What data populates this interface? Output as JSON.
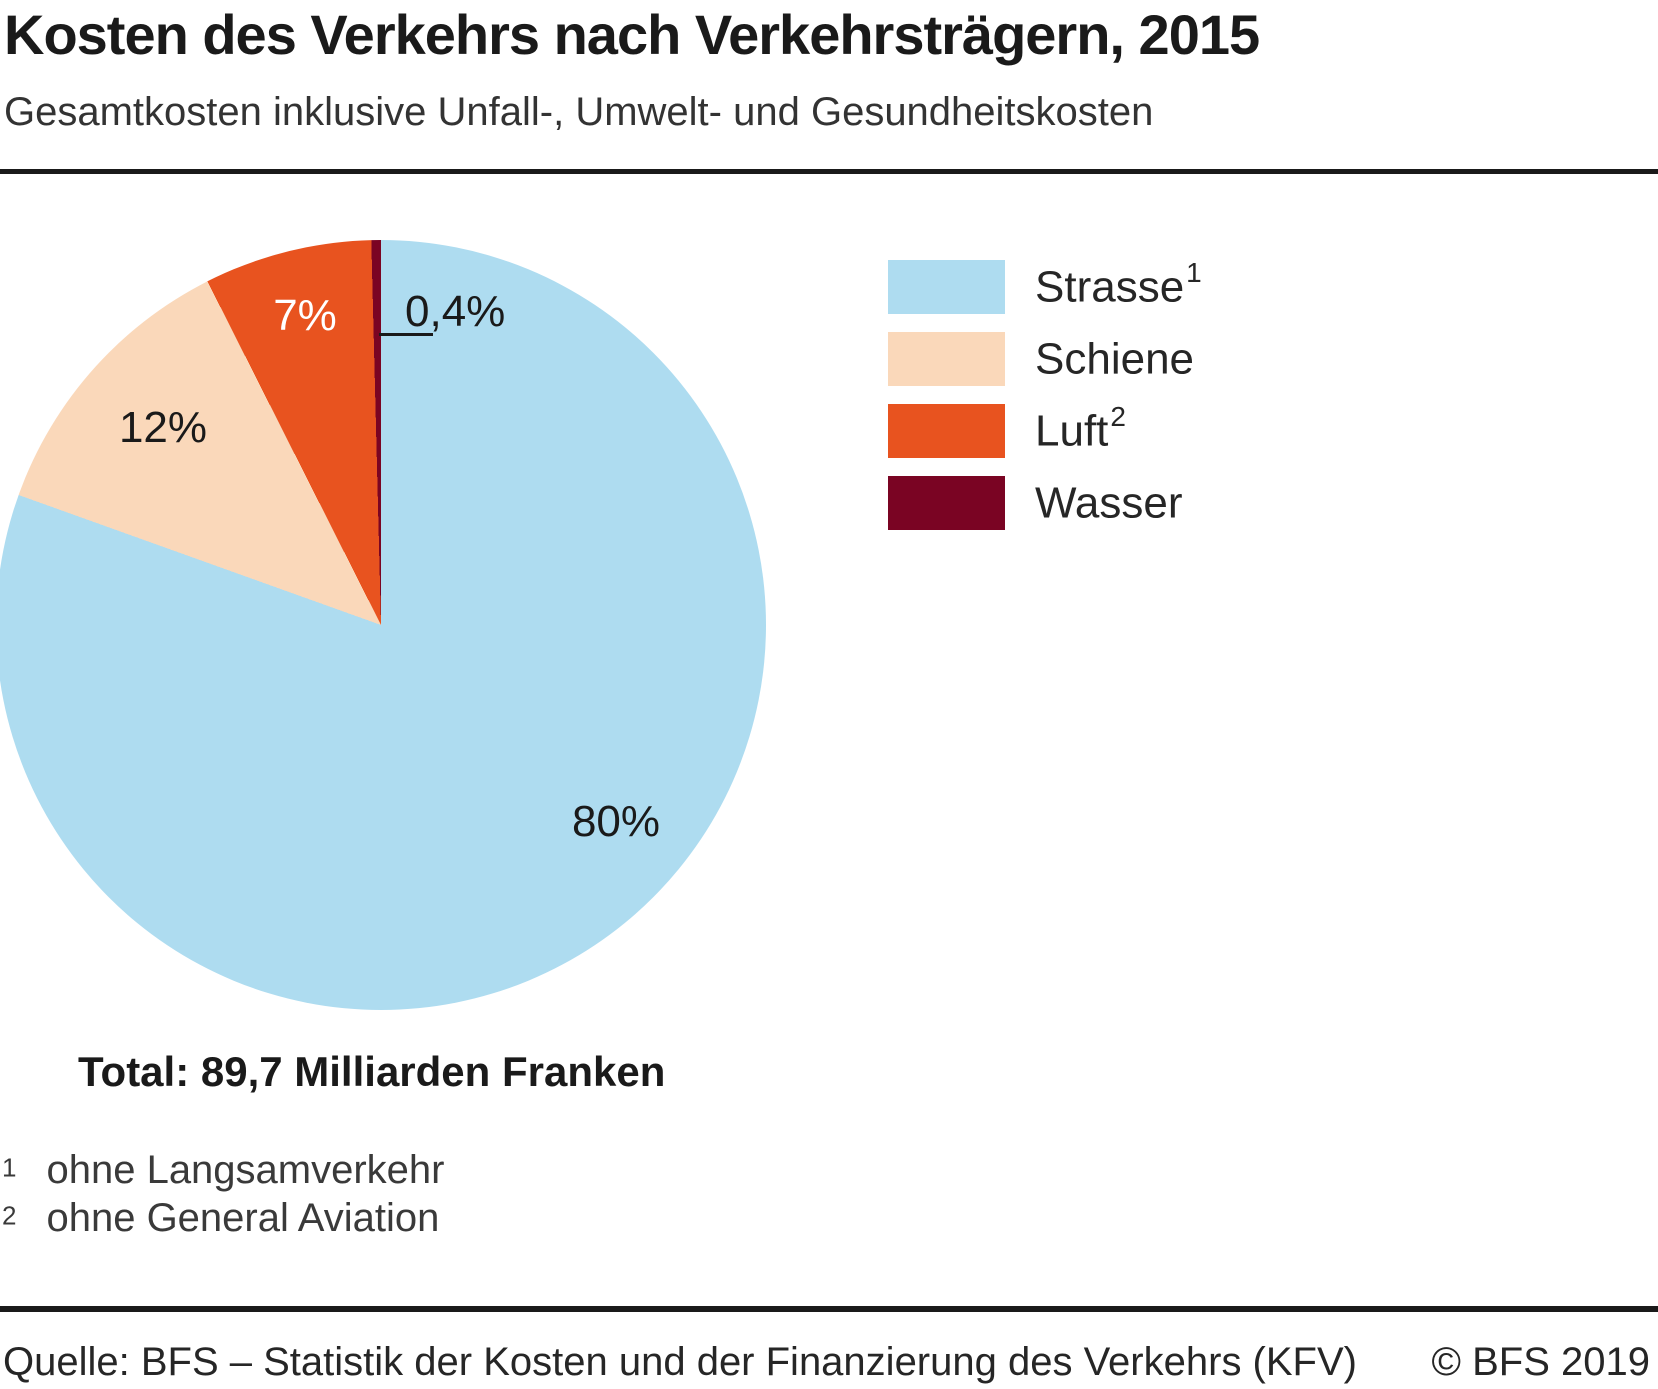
{
  "header": {
    "title": "Kosten des Verkehrs nach Verkehrsträgern, 2015",
    "subtitle": "Gesamtkosten inklusive Unfall-, Umwelt- und Gesundheitskosten"
  },
  "chart_data": {
    "type": "pie",
    "title": "Kosten des Verkehrs nach Verkehrsträgern, 2015",
    "subtitle": "Gesamtkosten inklusive Unfall-, Umwelt- und Gesundheitskosten",
    "unit": "percent",
    "direction": "clockwise",
    "start_angle_deg": 0,
    "legend_position": "right",
    "total_label": "Total: 89,7 Milliarden Franken",
    "total_value": "89,7 Milliarden Franken",
    "slices": [
      {
        "label": "Strasse",
        "footnote_ref": "1",
        "value_pct": 80,
        "display": "80%",
        "color": "#AEDCF0"
      },
      {
        "label": "Schiene",
        "value_pct": 12,
        "display": "12%",
        "color": "#FAD8BA"
      },
      {
        "label": "Luft",
        "footnote_ref": "2",
        "value_pct": 7,
        "display": "7%",
        "color": "#E8531F"
      },
      {
        "label": "Wasser",
        "value_pct": 0.4,
        "display": "0,4%",
        "color": "#7A0423"
      }
    ]
  },
  "footnotes": [
    {
      "marker": "1",
      "text": "ohne Langsamverkehr"
    },
    {
      "marker": "2",
      "text": "ohne General Aviation"
    }
  ],
  "footer": {
    "source": "Quelle: BFS – Statistik der Kosten und der Finanzierung des Verkehrs (KFV)",
    "copyright": "© BFS 2019"
  }
}
